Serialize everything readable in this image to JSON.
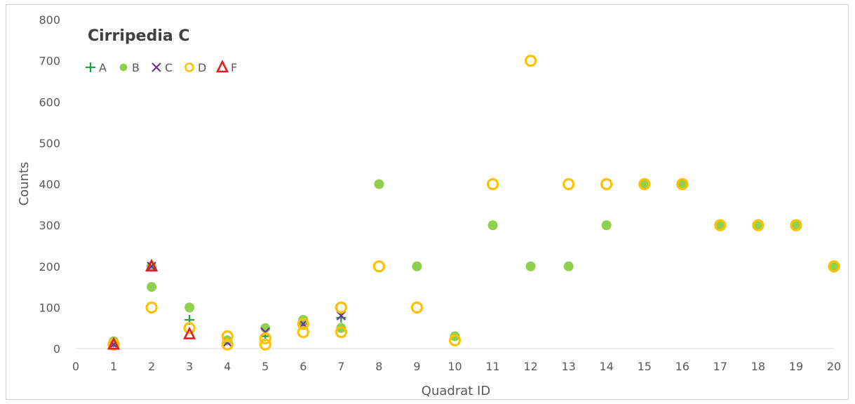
{
  "chart_data": {
    "type": "scatter",
    "title": "Cirripedia C",
    "xlabel": "Quadrat ID",
    "ylabel": "Counts",
    "xlim": [
      0,
      20
    ],
    "ylim": [
      0,
      800
    ],
    "xticks": [
      0,
      1,
      2,
      3,
      4,
      5,
      6,
      7,
      8,
      9,
      10,
      11,
      12,
      13,
      14,
      15,
      16,
      17,
      18,
      19,
      20
    ],
    "yticks": [
      0,
      100,
      200,
      300,
      400,
      500,
      600,
      700,
      800
    ],
    "grid": false,
    "legend_position": "top-left",
    "series": [
      {
        "name": "A",
        "marker": "plus",
        "color": "#1fa34a",
        "points": [
          [
            1,
            15
          ],
          [
            2,
            200
          ],
          [
            3,
            70
          ],
          [
            4,
            20
          ],
          [
            5,
            30
          ],
          [
            6,
            60
          ],
          [
            7,
            75
          ]
        ]
      },
      {
        "name": "B",
        "marker": "circle-filled",
        "color": "#8fd14f",
        "points": [
          [
            1,
            18
          ],
          [
            2,
            150
          ],
          [
            2,
            200
          ],
          [
            3,
            100
          ],
          [
            4,
            20
          ],
          [
            5,
            50
          ],
          [
            6,
            70
          ],
          [
            7,
            50
          ],
          [
            8,
            400
          ],
          [
            9,
            200
          ],
          [
            10,
            30
          ],
          [
            11,
            300
          ],
          [
            12,
            200
          ],
          [
            13,
            200
          ],
          [
            14,
            300
          ],
          [
            15,
            400
          ],
          [
            16,
            400
          ],
          [
            17,
            300
          ],
          [
            18,
            300
          ],
          [
            19,
            300
          ],
          [
            20,
            200
          ]
        ]
      },
      {
        "name": "C",
        "marker": "x",
        "color": "#7030a0",
        "points": [
          [
            1,
            10
          ],
          [
            2,
            200
          ],
          [
            4,
            15
          ],
          [
            5,
            40
          ],
          [
            6,
            60
          ],
          [
            7,
            80
          ]
        ]
      },
      {
        "name": "D",
        "marker": "circle-open",
        "color": "#ffc000",
        "points": [
          [
            1,
            10
          ],
          [
            2,
            100
          ],
          [
            3,
            50
          ],
          [
            4,
            30
          ],
          [
            4,
            10
          ],
          [
            5,
            25
          ],
          [
            5,
            10
          ],
          [
            6,
            40
          ],
          [
            6,
            60
          ],
          [
            7,
            100
          ],
          [
            7,
            40
          ],
          [
            8,
            200
          ],
          [
            9,
            100
          ],
          [
            10,
            20
          ],
          [
            11,
            400
          ],
          [
            12,
            700
          ],
          [
            13,
            400
          ],
          [
            14,
            400
          ],
          [
            15,
            400
          ],
          [
            16,
            400
          ],
          [
            17,
            300
          ],
          [
            18,
            300
          ],
          [
            19,
            300
          ],
          [
            20,
            200
          ]
        ]
      },
      {
        "name": "F",
        "marker": "triangle-open",
        "color": "#e02020",
        "points": [
          [
            1,
            10
          ],
          [
            2,
            200
          ],
          [
            3,
            35
          ]
        ]
      }
    ]
  }
}
